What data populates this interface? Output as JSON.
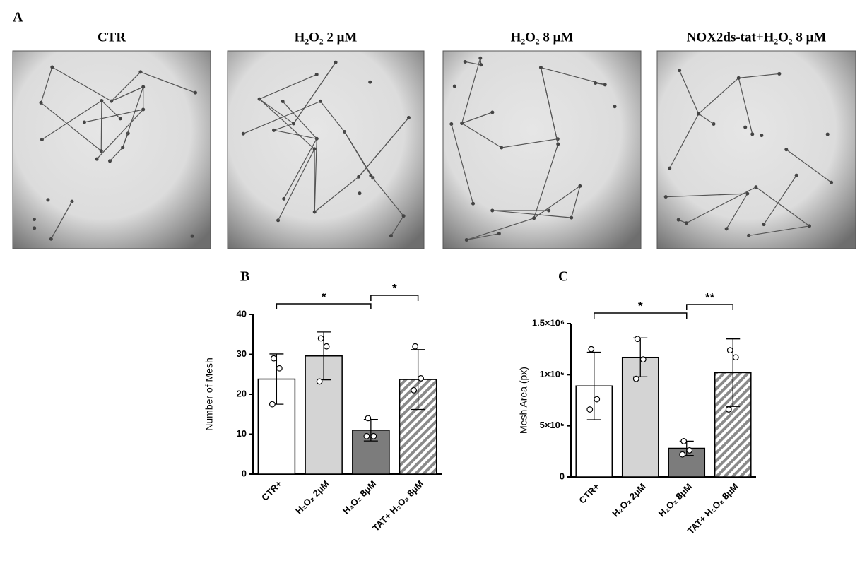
{
  "panel_a": {
    "label": "A",
    "titles": [
      "CTR",
      "H₂O₂ 2 μM",
      "H₂O₂ 8 μM",
      "NOX2ds-tat+H₂O₂ 8 μM"
    ]
  },
  "chart_data": [
    {
      "type": "bar",
      "panel": "B",
      "y_label": "Number of Mesh",
      "categories": [
        "CTR+",
        "H₂O₂ 2μM",
        "H₂O₂ 8μM",
        "TAT+ H₂O₂ 8μM"
      ],
      "values": [
        23.8,
        29.6,
        11,
        23.7
      ],
      "errors": [
        6.3,
        6,
        2.7,
        7.5
      ],
      "points": [
        [
          29,
          26.5,
          17.5
        ],
        [
          34,
          32,
          23.2
        ],
        [
          14,
          9.5,
          9.5
        ],
        [
          32,
          24,
          21
        ]
      ],
      "colors": [
        "#ffffff",
        "#d4d4d4",
        "#7c7c7c",
        "#ffffff"
      ],
      "hatch": [
        false,
        false,
        false,
        true
      ],
      "ylim": [
        0,
        40
      ],
      "yticks": [
        0,
        10,
        20,
        30,
        40
      ],
      "annotations": [
        {
          "text": "*",
          "from": "CTR+",
          "to": "H₂O₂ 8μM"
        },
        {
          "text": "*",
          "from": "H₂O₂ 8μM",
          "to": "TAT+ H₂O₂ 8μM"
        }
      ]
    },
    {
      "type": "bar",
      "panel": "C",
      "y_label": "Mesh Area (px)",
      "categories": [
        "CTR+",
        "H₂O₂ 2μM",
        "H₂O₂ 8μM",
        "TAT+ H₂O₂ 8μM"
      ],
      "values": [
        890000,
        1170000,
        280000,
        1020000
      ],
      "errors": [
        330000,
        190000,
        70000,
        330000
      ],
      "points": [
        [
          1250000,
          760000,
          660000
        ],
        [
          1350000,
          1150000,
          960000
        ],
        [
          350000,
          260000,
          220000
        ],
        [
          1240000,
          1170000,
          660000
        ]
      ],
      "colors": [
        "#ffffff",
        "#d4d4d4",
        "#7c7c7c",
        "#ffffff"
      ],
      "hatch": [
        false,
        false,
        false,
        true
      ],
      "ylim": [
        0,
        1500000
      ],
      "yticks": [
        0,
        {
          "value": 500000,
          "label": "5×10⁵"
        },
        {
          "value": 1000000,
          "label": "1×10⁶"
        },
        {
          "value": 1500000,
          "label": "1.5×10⁶"
        }
      ],
      "annotations": [
        {
          "text": "*",
          "from": "CTR+",
          "to": "H₂O₂ 8μM"
        },
        {
          "text": "**",
          "from": "H₂O₂ 8μM",
          "to": "TAT+ H₂O₂ 8μM"
        }
      ]
    }
  ]
}
